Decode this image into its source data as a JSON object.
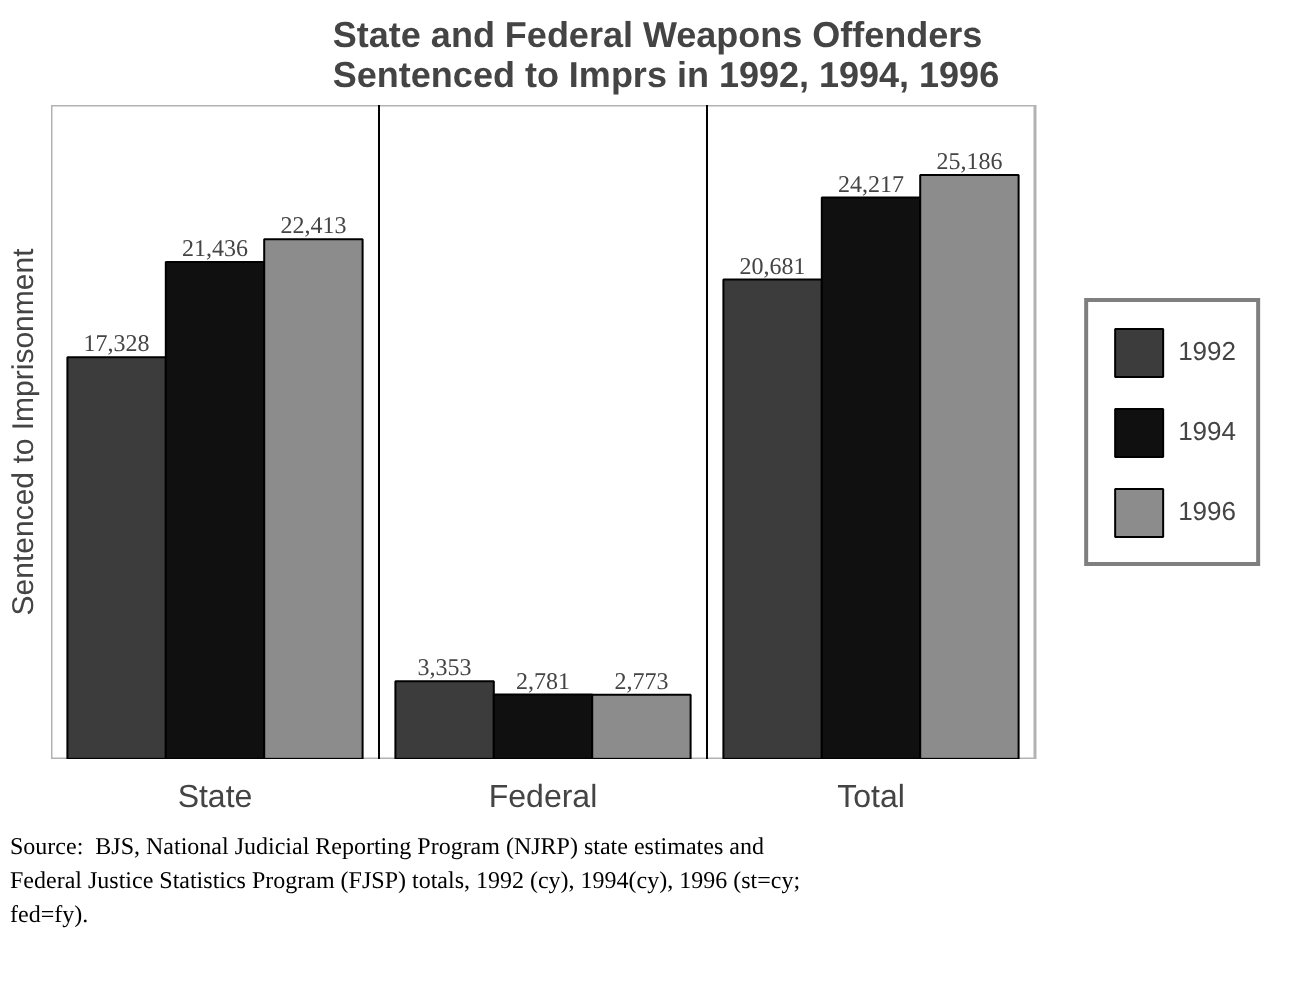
{
  "chart_data": {
    "type": "bar",
    "title": "State and Federal Weapons Offenders\nSentenced to Imprs in 1992, 1994, 1996",
    "ylabel": "Sentenced to Imprisonment",
    "categories": [
      "State",
      "Federal",
      "Total"
    ],
    "series": [
      {
        "name": "1992",
        "color": "#3c3c3c",
        "values": [
          17328,
          3353,
          20681
        ],
        "value_labels": [
          "17,328",
          "3,353",
          "20,681"
        ]
      },
      {
        "name": "1994",
        "color": "#101010",
        "values": [
          21436,
          2781,
          24217
        ],
        "value_labels": [
          "21,436",
          "2,781",
          "24,217"
        ]
      },
      {
        "name": "1996",
        "color": "#8c8c8c",
        "values": [
          22413,
          2773,
          25186
        ],
        "value_labels": [
          "22,413",
          "2,773",
          "25,186"
        ]
      }
    ],
    "legend": "right",
    "grid": false,
    "annotations": [
      "Source:  BJS, National Judicial Reporting Program (NJRP) state estimates and\nFederal Justice Statistics Program (FJSP) totals, 1992 (cy), 1994(cy), 1996 (st=cy;\nfed=fy)."
    ]
  }
}
